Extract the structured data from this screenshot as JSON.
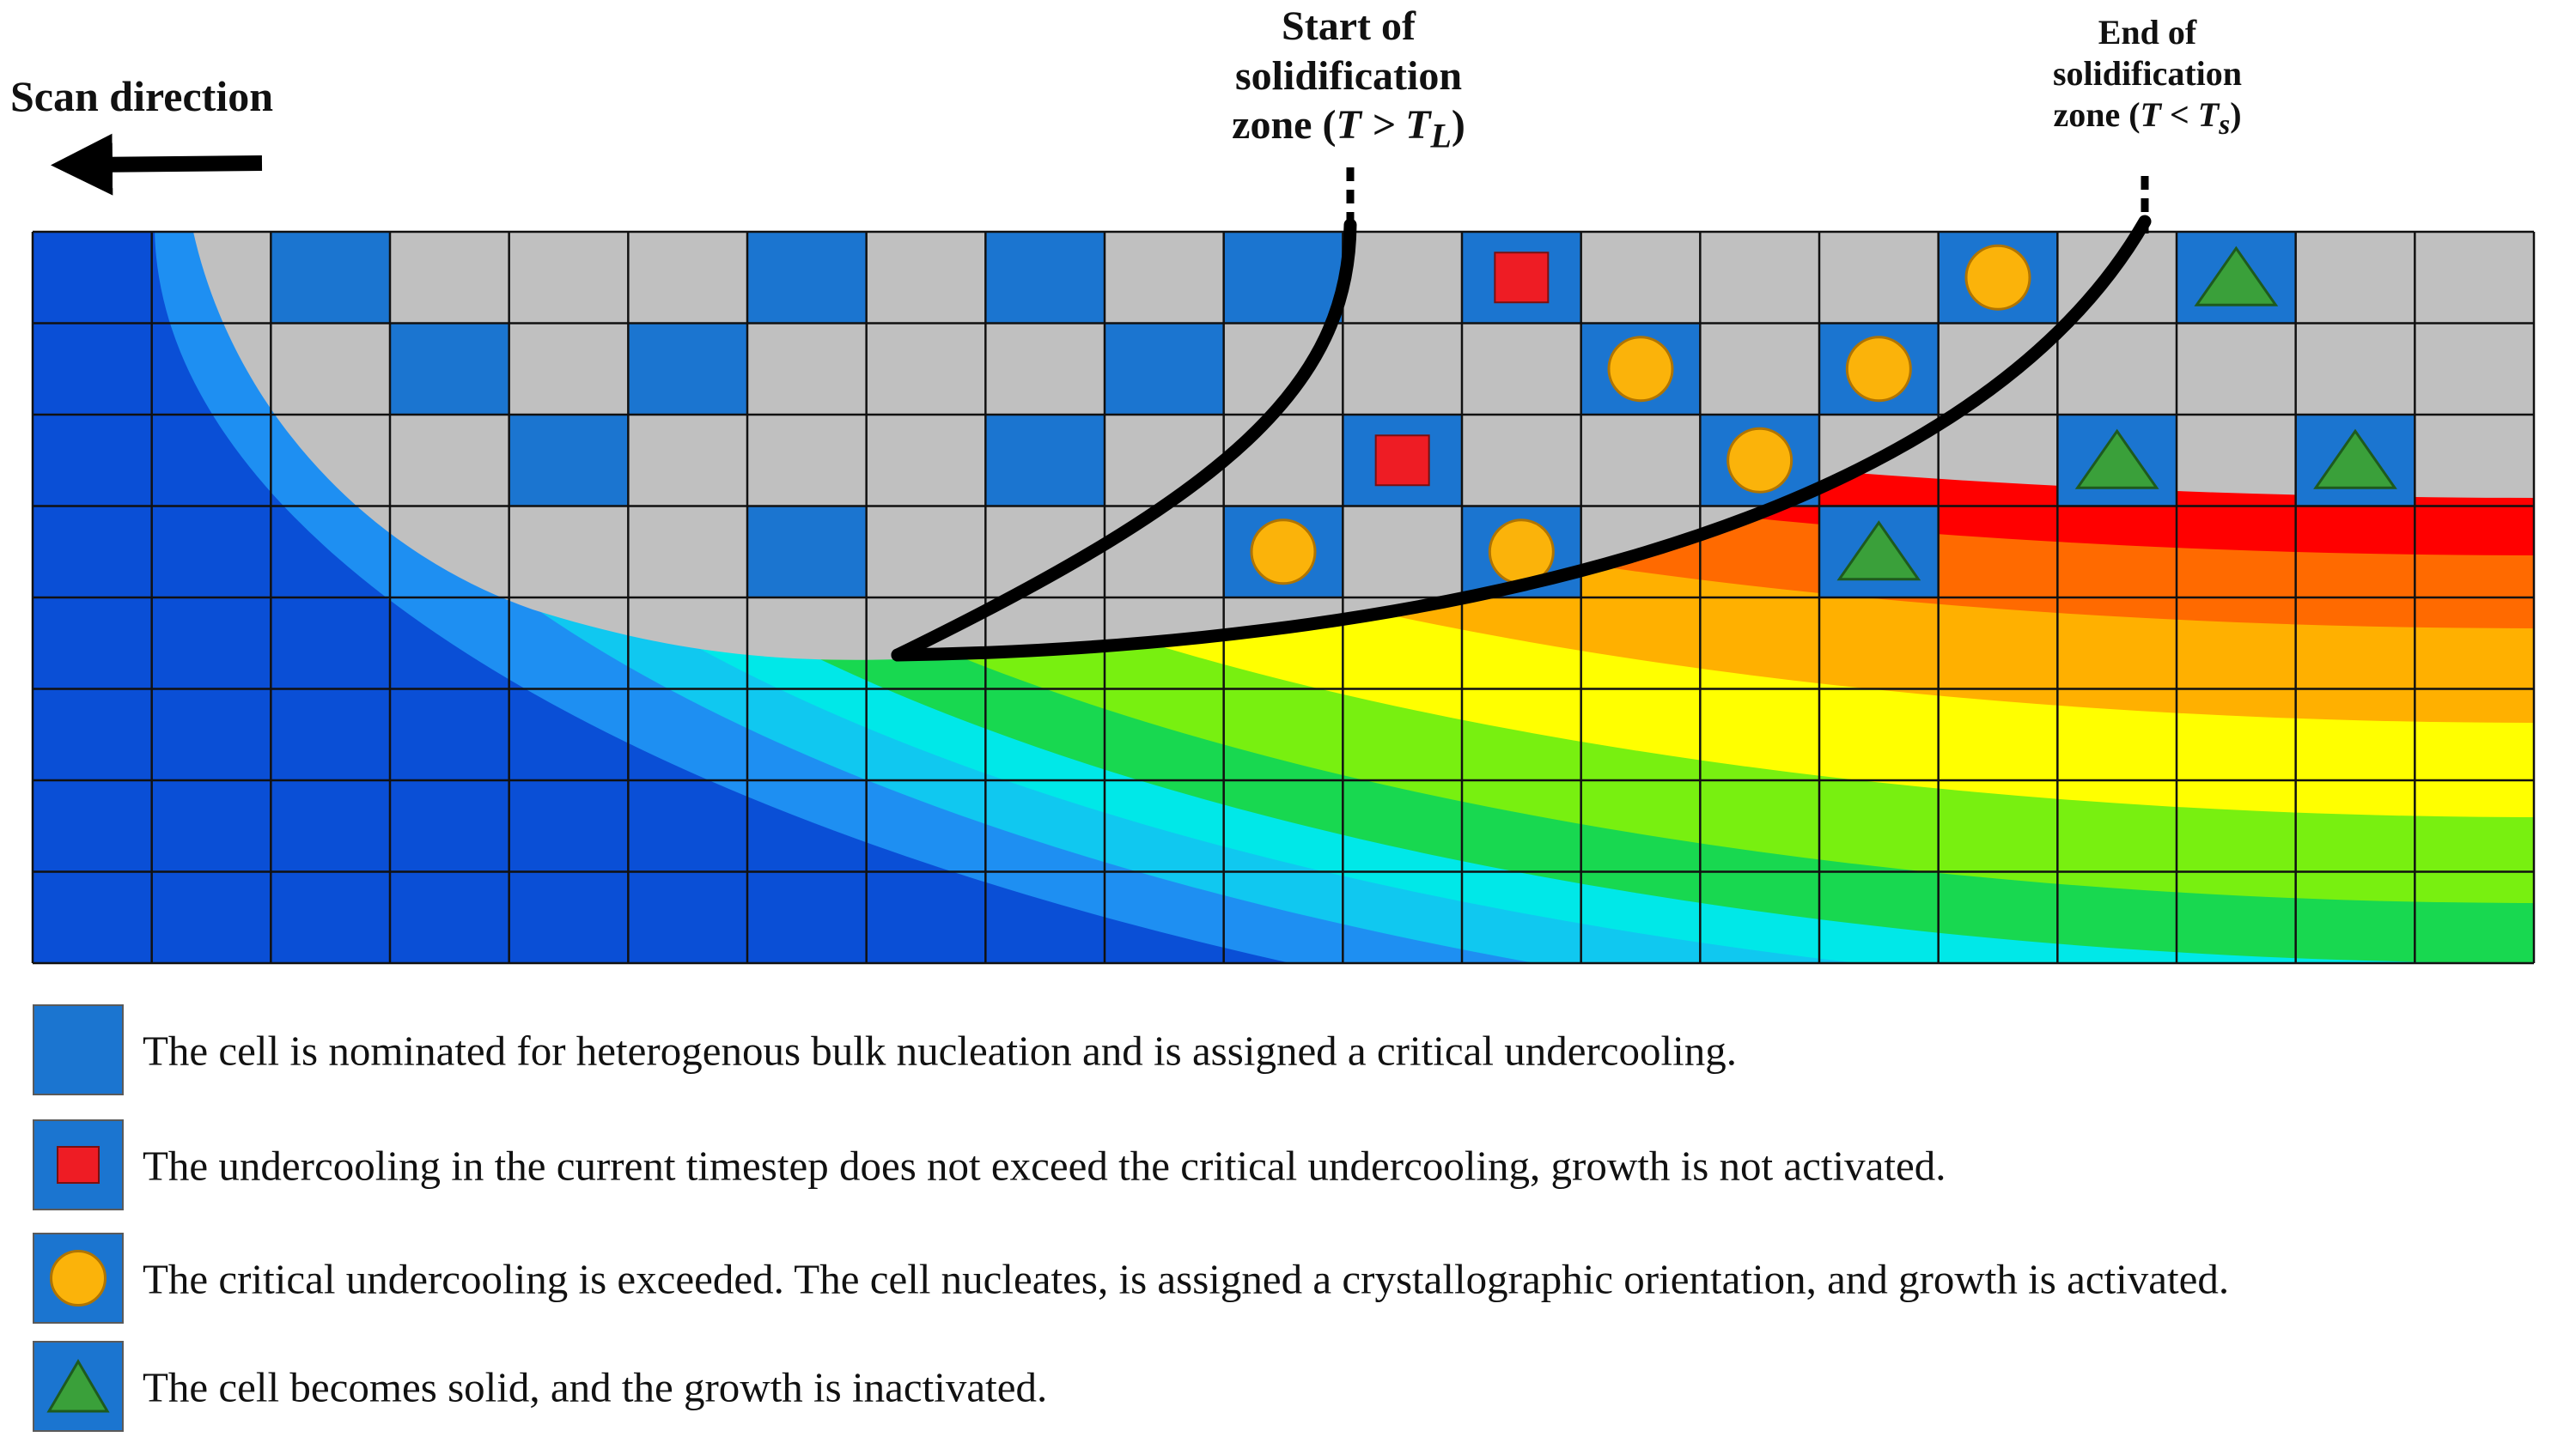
{
  "scan_direction": "Scan direction",
  "start_zone": {
    "line1": "Start of",
    "line2": "solidification",
    "line3_prefix": "zone (",
    "line3_math": "T > T",
    "line3_sub": "L",
    "line3_suffix": ")"
  },
  "end_zone": {
    "line1": "End of",
    "line2": "solidification",
    "line3_prefix": "zone (",
    "line3_math": "T < T",
    "line3_sub": "s",
    "line3_suffix": ")"
  },
  "grid": {
    "cols": 21,
    "rows": 8
  },
  "temperature_colors": [
    "#0a4fd6",
    "#1e8ff2",
    "#10c8f0",
    "#00e8e8",
    "#18d850",
    "#78f010",
    "#ffff00",
    "#ffb000",
    "#ff6a00",
    "#ff0000",
    "#c0c0c0"
  ],
  "cell_colors": {
    "nominated": "#1b75d0",
    "liquid": "#c0c0c0",
    "square": "#ee1c24",
    "circle": "#fbb30a",
    "triangle": "#3aa03a"
  },
  "nominated_cells": [
    {
      "col": 2,
      "row": 0,
      "symbol": "none"
    },
    {
      "col": 6,
      "row": 0,
      "symbol": "none"
    },
    {
      "col": 8,
      "row": 0,
      "symbol": "none"
    },
    {
      "col": 10,
      "row": 0,
      "symbol": "none"
    },
    {
      "col": 12,
      "row": 0,
      "symbol": "square"
    },
    {
      "col": 16,
      "row": 0,
      "symbol": "circle"
    },
    {
      "col": 18,
      "row": 0,
      "symbol": "triangle"
    },
    {
      "col": 3,
      "row": 1,
      "symbol": "none"
    },
    {
      "col": 5,
      "row": 1,
      "symbol": "none"
    },
    {
      "col": 9,
      "row": 1,
      "symbol": "none"
    },
    {
      "col": 13,
      "row": 1,
      "symbol": "circle"
    },
    {
      "col": 15,
      "row": 1,
      "symbol": "circle"
    },
    {
      "col": 4,
      "row": 2,
      "symbol": "none"
    },
    {
      "col": 8,
      "row": 2,
      "symbol": "none"
    },
    {
      "col": 11,
      "row": 2,
      "symbol": "square"
    },
    {
      "col": 14,
      "row": 2,
      "symbol": "circle"
    },
    {
      "col": 17,
      "row": 2,
      "symbol": "triangle"
    },
    {
      "col": 19,
      "row": 2,
      "symbol": "triangle"
    },
    {
      "col": 6,
      "row": 3,
      "symbol": "none"
    },
    {
      "col": 10,
      "row": 3,
      "symbol": "circle"
    },
    {
      "col": 12,
      "row": 3,
      "symbol": "circle"
    },
    {
      "col": 15,
      "row": 3,
      "symbol": "triangle"
    }
  ],
  "legend": [
    {
      "symbol": "none",
      "text": "The cell is nominated for heterogenous bulk nucleation and is assigned a critical undercooling."
    },
    {
      "symbol": "square",
      "text": "The undercooling in the current timestep does not exceed the critical undercooling, growth is not activated."
    },
    {
      "symbol": "circle",
      "text": "The critical undercooling is exceeded. The cell nucleates, is assigned a crystallographic orientation, and growth is activated."
    },
    {
      "symbol": "triangle",
      "text": "The cell becomes solid, and the growth is inactivated."
    }
  ]
}
